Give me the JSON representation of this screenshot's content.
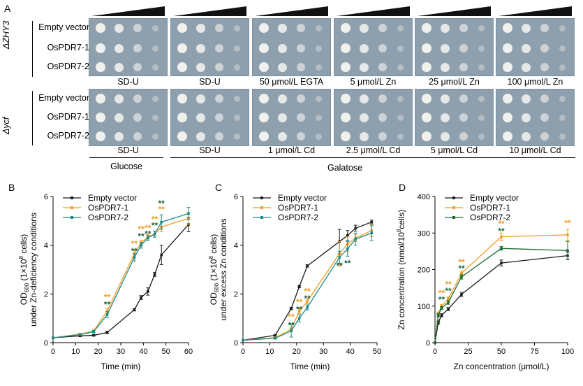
{
  "panel_a": {
    "letter": "A",
    "strain_top": "ΔZHY3",
    "strain_bottom": "Δycf",
    "rows": [
      "Empty vector",
      "OsPDR7-1",
      "OsPDR7-2"
    ],
    "top_conditions": [
      "SD-U",
      "SD-U",
      "50 μmol/L EGTA",
      "5 μmol/L Zn",
      "25 μmol/L Zn",
      "100 μmol/L Zn"
    ],
    "bottom_conditions": [
      "SD-U",
      "SD-U",
      "1 μmol/L Cd",
      "2.5 μmol/L Cd",
      "5 μmol/L Cd",
      "10 μmol/L Cd"
    ],
    "glucose_label": "Glucose",
    "galactose_label": "Galatose"
  },
  "chart_data": [
    {
      "panel": "B",
      "type": "line",
      "xlabel": "Time (min)",
      "ylabel_line1": "OD600 (1×10^8 cells)",
      "ylabel_line2": "under Zn-deficiency conditions",
      "xlim": [
        0,
        60
      ],
      "ylim": [
        0,
        6
      ],
      "xticks": [
        0,
        10,
        20,
        30,
        40,
        50,
        60
      ],
      "yticks": [
        0,
        2,
        4,
        6
      ],
      "legend_position": "top-left",
      "series": [
        {
          "name": "Empty vector",
          "color": "#1a1a1a",
          "x": [
            0,
            12,
            18,
            24,
            36,
            39,
            42,
            45,
            48,
            60
          ],
          "y": [
            0.2,
            0.28,
            0.3,
            0.42,
            1.35,
            1.85,
            2.1,
            2.8,
            3.6,
            4.85
          ],
          "err": [
            0,
            0.03,
            0.03,
            0.05,
            0.05,
            0.08,
            0.15,
            0.08,
            0.4,
            0.3
          ]
        },
        {
          "name": "OsPDR7-1",
          "color": "#f39c1f",
          "x": [
            0,
            12,
            18,
            24,
            36,
            39,
            42,
            45,
            48,
            60
          ],
          "y": [
            0.2,
            0.35,
            0.48,
            1.3,
            3.65,
            4.1,
            4.35,
            4.45,
            4.75,
            5.1
          ],
          "err": [
            0,
            0.03,
            0.05,
            0.1,
            0.15,
            0.1,
            0.1,
            0.12,
            0.2,
            0.25
          ]
        },
        {
          "name": "OsPDR7-2",
          "color": "#1d8a8a",
          "x": [
            0,
            12,
            18,
            24,
            36,
            39,
            42,
            45,
            48,
            60
          ],
          "y": [
            0.2,
            0.33,
            0.45,
            1.15,
            3.5,
            4.0,
            4.3,
            4.45,
            4.95,
            5.3
          ],
          "err": [
            0,
            0.03,
            0.05,
            0.12,
            0.15,
            0.12,
            0.1,
            0.12,
            0.3,
            0.25
          ]
        }
      ],
      "significance": [
        {
          "x": 24,
          "y": 1.75,
          "label": "**",
          "color": "#f39c1f"
        },
        {
          "x": 24,
          "y": 1.45,
          "label": "**",
          "color": "#1d5e3c"
        },
        {
          "x": 36,
          "y": 3.95,
          "label": "**",
          "color": "#f39c1f"
        },
        {
          "x": 36,
          "y": 3.65,
          "label": "**",
          "color": "#1d5e3c"
        },
        {
          "x": 39,
          "y": 4.55,
          "label": "**",
          "color": "#f39c1f"
        },
        {
          "x": 39,
          "y": 4.25,
          "label": "**",
          "color": "#1d5e3c"
        },
        {
          "x": 42,
          "y": 4.6,
          "label": "**",
          "color": "#f39c1f"
        },
        {
          "x": 42,
          "y": 4.35,
          "label": "**",
          "color": "#1d5e3c"
        },
        {
          "x": 45,
          "y": 4.95,
          "label": "**",
          "color": "#f39c1f"
        },
        {
          "x": 45,
          "y": 4.7,
          "label": "**",
          "color": "#1d5e3c"
        },
        {
          "x": 48,
          "y": 5.6,
          "label": "**",
          "color": "#1d5e3c"
        },
        {
          "x": 48,
          "y": 5.35,
          "label": "**",
          "color": "#f39c1f"
        }
      ]
    },
    {
      "panel": "C",
      "type": "line",
      "xlabel": "Time (min)",
      "ylabel_line1": "OD600 (1×10^8 cells)",
      "ylabel_line2": "under excess Zn conditions",
      "xlim": [
        0,
        50
      ],
      "ylim": [
        0,
        6
      ],
      "xticks": [
        0,
        10,
        20,
        30,
        40,
        50
      ],
      "yticks": [
        0,
        2,
        4,
        6
      ],
      "legend_position": "top-left",
      "series": [
        {
          "name": "Empty vector",
          "color": "#1a1a1a",
          "x": [
            0,
            12,
            18,
            21,
            24,
            36,
            39,
            42,
            48
          ],
          "y": [
            0.1,
            0.3,
            1.4,
            2.3,
            3.15,
            4.15,
            4.4,
            4.7,
            4.95
          ],
          "err": [
            0,
            0.03,
            0.05,
            0.05,
            0.05,
            0.5,
            0.2,
            0.12,
            0.08
          ]
        },
        {
          "name": "OsPDR7-1",
          "color": "#f39c1f",
          "x": [
            0,
            12,
            18,
            21,
            24,
            36,
            39,
            42,
            48
          ],
          "y": [
            0.1,
            0.2,
            0.55,
            1.3,
            1.7,
            3.65,
            4.05,
            4.3,
            4.6
          ],
          "err": [
            0,
            0.03,
            0.05,
            0.1,
            0.1,
            0.5,
            0.3,
            0.15,
            0.25
          ]
        },
        {
          "name": "OsPDR7-2",
          "color": "#1d8a8a",
          "x": [
            0,
            12,
            18,
            21,
            24,
            36,
            39,
            42,
            48
          ],
          "y": [
            0.1,
            0.18,
            0.48,
            1.0,
            1.45,
            3.5,
            3.85,
            4.25,
            4.5
          ],
          "err": [
            0,
            0.03,
            0.25,
            0.15,
            0.1,
            0.25,
            0.3,
            0.25,
            0.3
          ]
        }
      ],
      "significance": [
        {
          "x": 18,
          "y": 0.95,
          "label": "**",
          "color": "#f39c1f"
        },
        {
          "x": 18,
          "y": 0.6,
          "label": "**",
          "color": "#1d5e3c"
        },
        {
          "x": 21,
          "y": 1.55,
          "label": "**",
          "color": "#f39c1f"
        },
        {
          "x": 21,
          "y": 1.25,
          "label": "**",
          "color": "#1d5e3c"
        },
        {
          "x": 24,
          "y": 2.0,
          "label": "**",
          "color": "#f39c1f"
        },
        {
          "x": 24,
          "y": 1.7,
          "label": "**",
          "color": "#1d5e3c"
        },
        {
          "x": 36,
          "y": 3.05,
          "label": "**",
          "color": "#1d5e3c"
        },
        {
          "x": 39,
          "y": 3.15,
          "label": "**",
          "color": "#1d5e3c"
        }
      ]
    },
    {
      "panel": "D",
      "type": "line",
      "xlabel": "Zn concentration (μmol/L)",
      "ylabel": "Zn concentration (nmol/10^8 cells)",
      "xlim": [
        0,
        100
      ],
      "ylim": [
        0,
        400
      ],
      "xticks": [
        0,
        25,
        50,
        75,
        100
      ],
      "yticks": [
        0,
        100,
        200,
        300,
        400
      ],
      "legend_position": "top-left",
      "series": [
        {
          "name": "Empty vector",
          "color": "#1a1a1a",
          "x": [
            0,
            2.5,
            5,
            10,
            20,
            50,
            100
          ],
          "y": [
            0,
            55,
            75,
            92,
            132,
            218,
            238
          ],
          "err": [
            0,
            4,
            4,
            4,
            6,
            8,
            10
          ]
        },
        {
          "name": "OsPDR7-1",
          "color": "#f39c1f",
          "x": [
            0,
            2.5,
            5,
            10,
            20,
            50,
            100
          ],
          "y": [
            0,
            80,
            100,
            120,
            190,
            290,
            295
          ],
          "err": [
            0,
            4,
            4,
            5,
            6,
            10,
            15
          ]
        },
        {
          "name": "OsPDR7-2",
          "color": "#1a6b33",
          "x": [
            0,
            2.5,
            5,
            10,
            20,
            50,
            100
          ],
          "y": [
            0,
            75,
            95,
            110,
            180,
            258,
            252
          ],
          "err": [
            0,
            4,
            4,
            5,
            6,
            5,
            25
          ]
        }
      ],
      "significance": [
        {
          "x": 5,
          "y": 128,
          "label": "**",
          "color": "#f39c1f"
        },
        {
          "x": 5,
          "y": 110,
          "label": "**",
          "color": "#1a6b33"
        },
        {
          "x": 10,
          "y": 152,
          "label": "**",
          "color": "#f39c1f"
        },
        {
          "x": 10,
          "y": 134,
          "label": "**",
          "color": "#1a6b33"
        },
        {
          "x": 20,
          "y": 212,
          "label": "**",
          "color": "#f39c1f"
        },
        {
          "x": 20,
          "y": 195,
          "label": "**",
          "color": "#1a6b33"
        },
        {
          "x": 50,
          "y": 318,
          "label": "**",
          "color": "#f39c1f"
        },
        {
          "x": 50,
          "y": 298,
          "label": "**",
          "color": "#1a6b33"
        },
        {
          "x": 100,
          "y": 320,
          "label": "**",
          "color": "#f39c1f"
        }
      ]
    }
  ]
}
